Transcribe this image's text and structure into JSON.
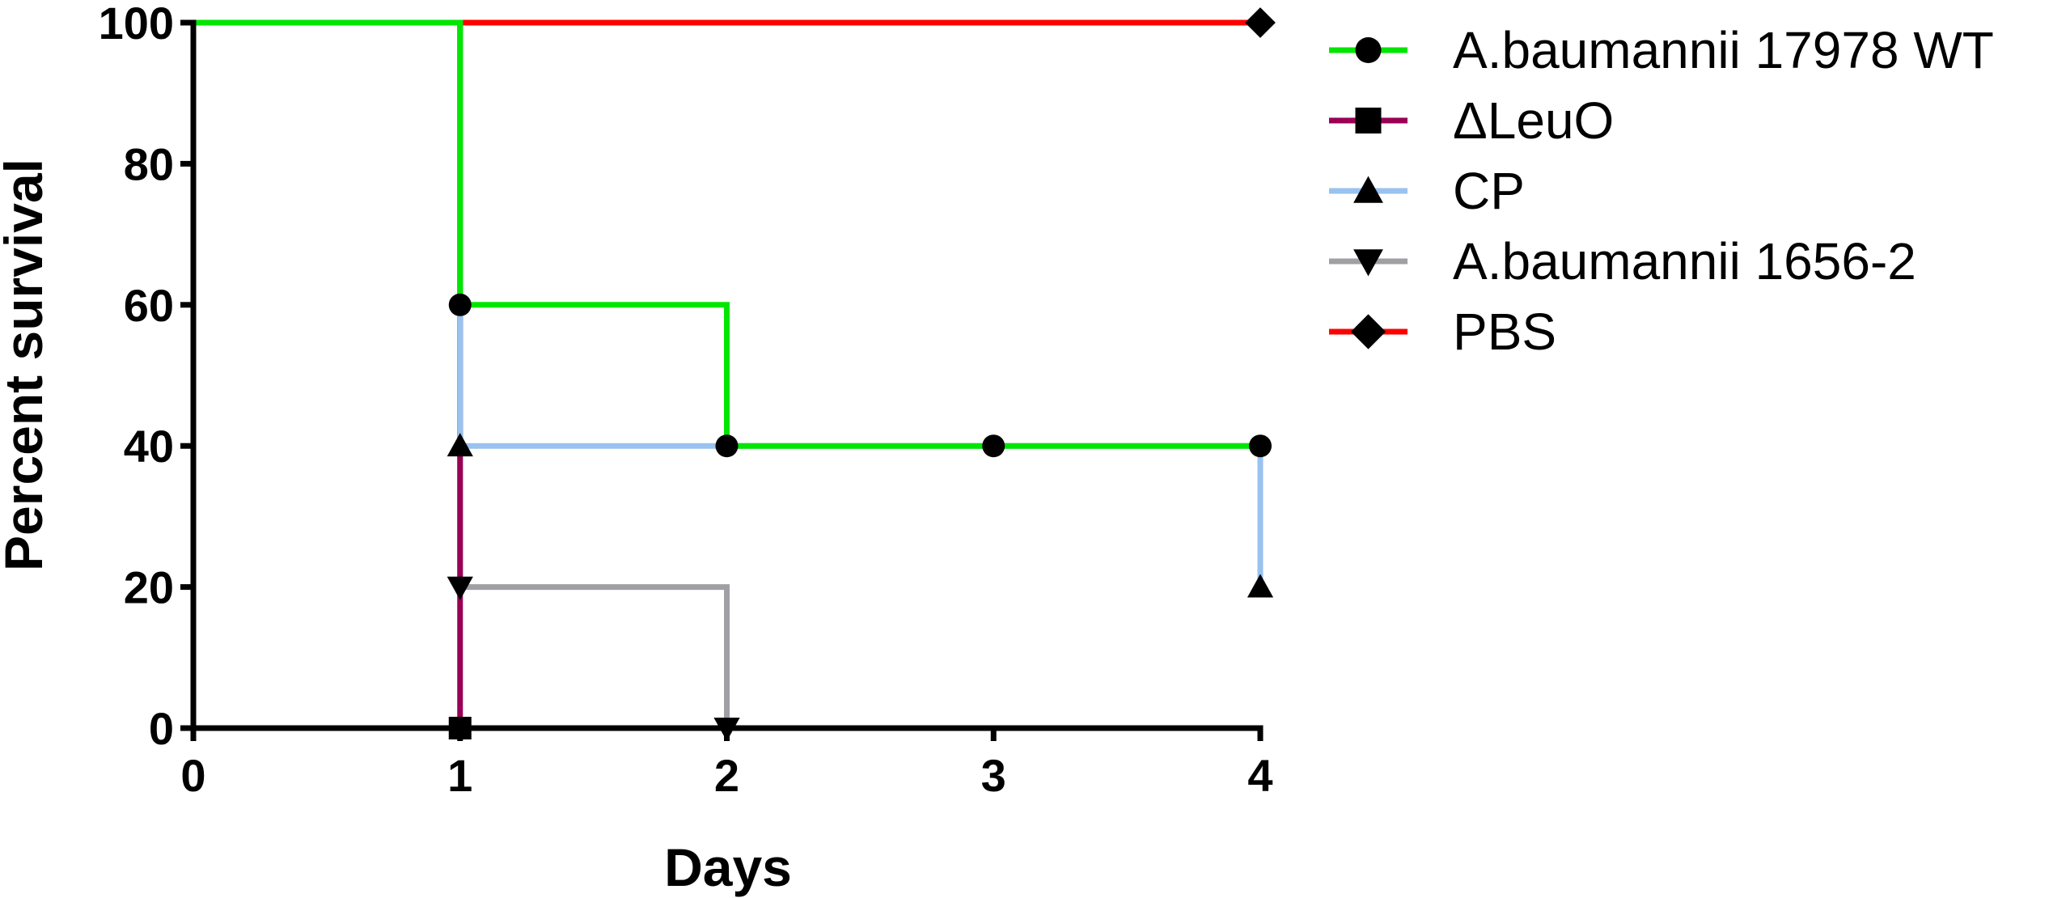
{
  "chart_data": {
    "type": "line",
    "style": "step (Kaplan-Meier survival curves)",
    "title": "",
    "xlabel": "Days",
    "ylabel": "Percent survival",
    "xlim": [
      0,
      4
    ],
    "ylim": [
      0,
      100
    ],
    "x_ticks": [
      "0",
      "1",
      "2",
      "3",
      "4"
    ],
    "y_ticks": [
      "0",
      "20",
      "40",
      "60",
      "80",
      "100"
    ],
    "grid": false,
    "legend_position": "right",
    "series": [
      {
        "name": "A.baumannii 17978 WT",
        "color": "#00e600",
        "marker": "circle",
        "x": [
          0,
          1,
          2,
          3,
          4
        ],
        "y": [
          100,
          60,
          40,
          40,
          40
        ]
      },
      {
        "name": "ΔLeuO",
        "color": "#990055",
        "marker": "square",
        "x": [
          0,
          1
        ],
        "y": [
          100,
          0
        ]
      },
      {
        "name": "CP",
        "color": "#99c2f0",
        "marker": "triangle-up",
        "x": [
          0,
          1,
          4
        ],
        "y": [
          100,
          40,
          20
        ]
      },
      {
        "name": "A.baumannii 1656-2",
        "color": "#a0a0a4",
        "marker": "triangle-down",
        "x": [
          0,
          1,
          2
        ],
        "y": [
          100,
          20,
          0
        ]
      },
      {
        "name": "PBS",
        "color": "#ff0000",
        "marker": "diamond",
        "x": [
          0,
          4
        ],
        "y": [
          100,
          100
        ]
      }
    ]
  }
}
